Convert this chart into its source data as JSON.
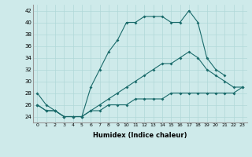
{
  "xlabel": "Humidex (Indice chaleur)",
  "xlim": [
    -0.5,
    23.5
  ],
  "ylim": [
    23,
    43
  ],
  "yticks": [
    24,
    26,
    28,
    30,
    32,
    34,
    36,
    38,
    40,
    42
  ],
  "xticks": [
    0,
    1,
    2,
    3,
    4,
    5,
    6,
    7,
    8,
    9,
    10,
    11,
    12,
    13,
    14,
    15,
    16,
    17,
    18,
    19,
    20,
    21,
    22,
    23
  ],
  "bg_color": "#ceeaea",
  "line_color": "#1a6b6b",
  "grid_color": "#b0d8d8",
  "line1_x": [
    0,
    1,
    2,
    3,
    4,
    5,
    6,
    7,
    8,
    9,
    10,
    11,
    12,
    13,
    14,
    15,
    16,
    17,
    18,
    19,
    20,
    21
  ],
  "line1_y": [
    28,
    26,
    25,
    24,
    24,
    24,
    29,
    32,
    35,
    37,
    40,
    40,
    41,
    41,
    41,
    40,
    40,
    42,
    40,
    34,
    32,
    31
  ],
  "line2_x": [
    0,
    1,
    2,
    3,
    4,
    5,
    6,
    7,
    8,
    9,
    10,
    11,
    12,
    13,
    14,
    15,
    16,
    17,
    18,
    19,
    20,
    21,
    22,
    23
  ],
  "line2_y": [
    26,
    25,
    25,
    24,
    24,
    24,
    25,
    26,
    27,
    28,
    29,
    30,
    31,
    32,
    33,
    33,
    34,
    35,
    34,
    32,
    31,
    30,
    29,
    29
  ],
  "line3_x": [
    0,
    1,
    2,
    3,
    4,
    5,
    6,
    7,
    8,
    9,
    10,
    11,
    12,
    13,
    14,
    15,
    16,
    17,
    18,
    19,
    20,
    21,
    22,
    23
  ],
  "line3_y": [
    26,
    25,
    25,
    24,
    24,
    24,
    25,
    25,
    26,
    26,
    26,
    27,
    27,
    27,
    27,
    28,
    28,
    28,
    28,
    28,
    28,
    28,
    28,
    29
  ]
}
